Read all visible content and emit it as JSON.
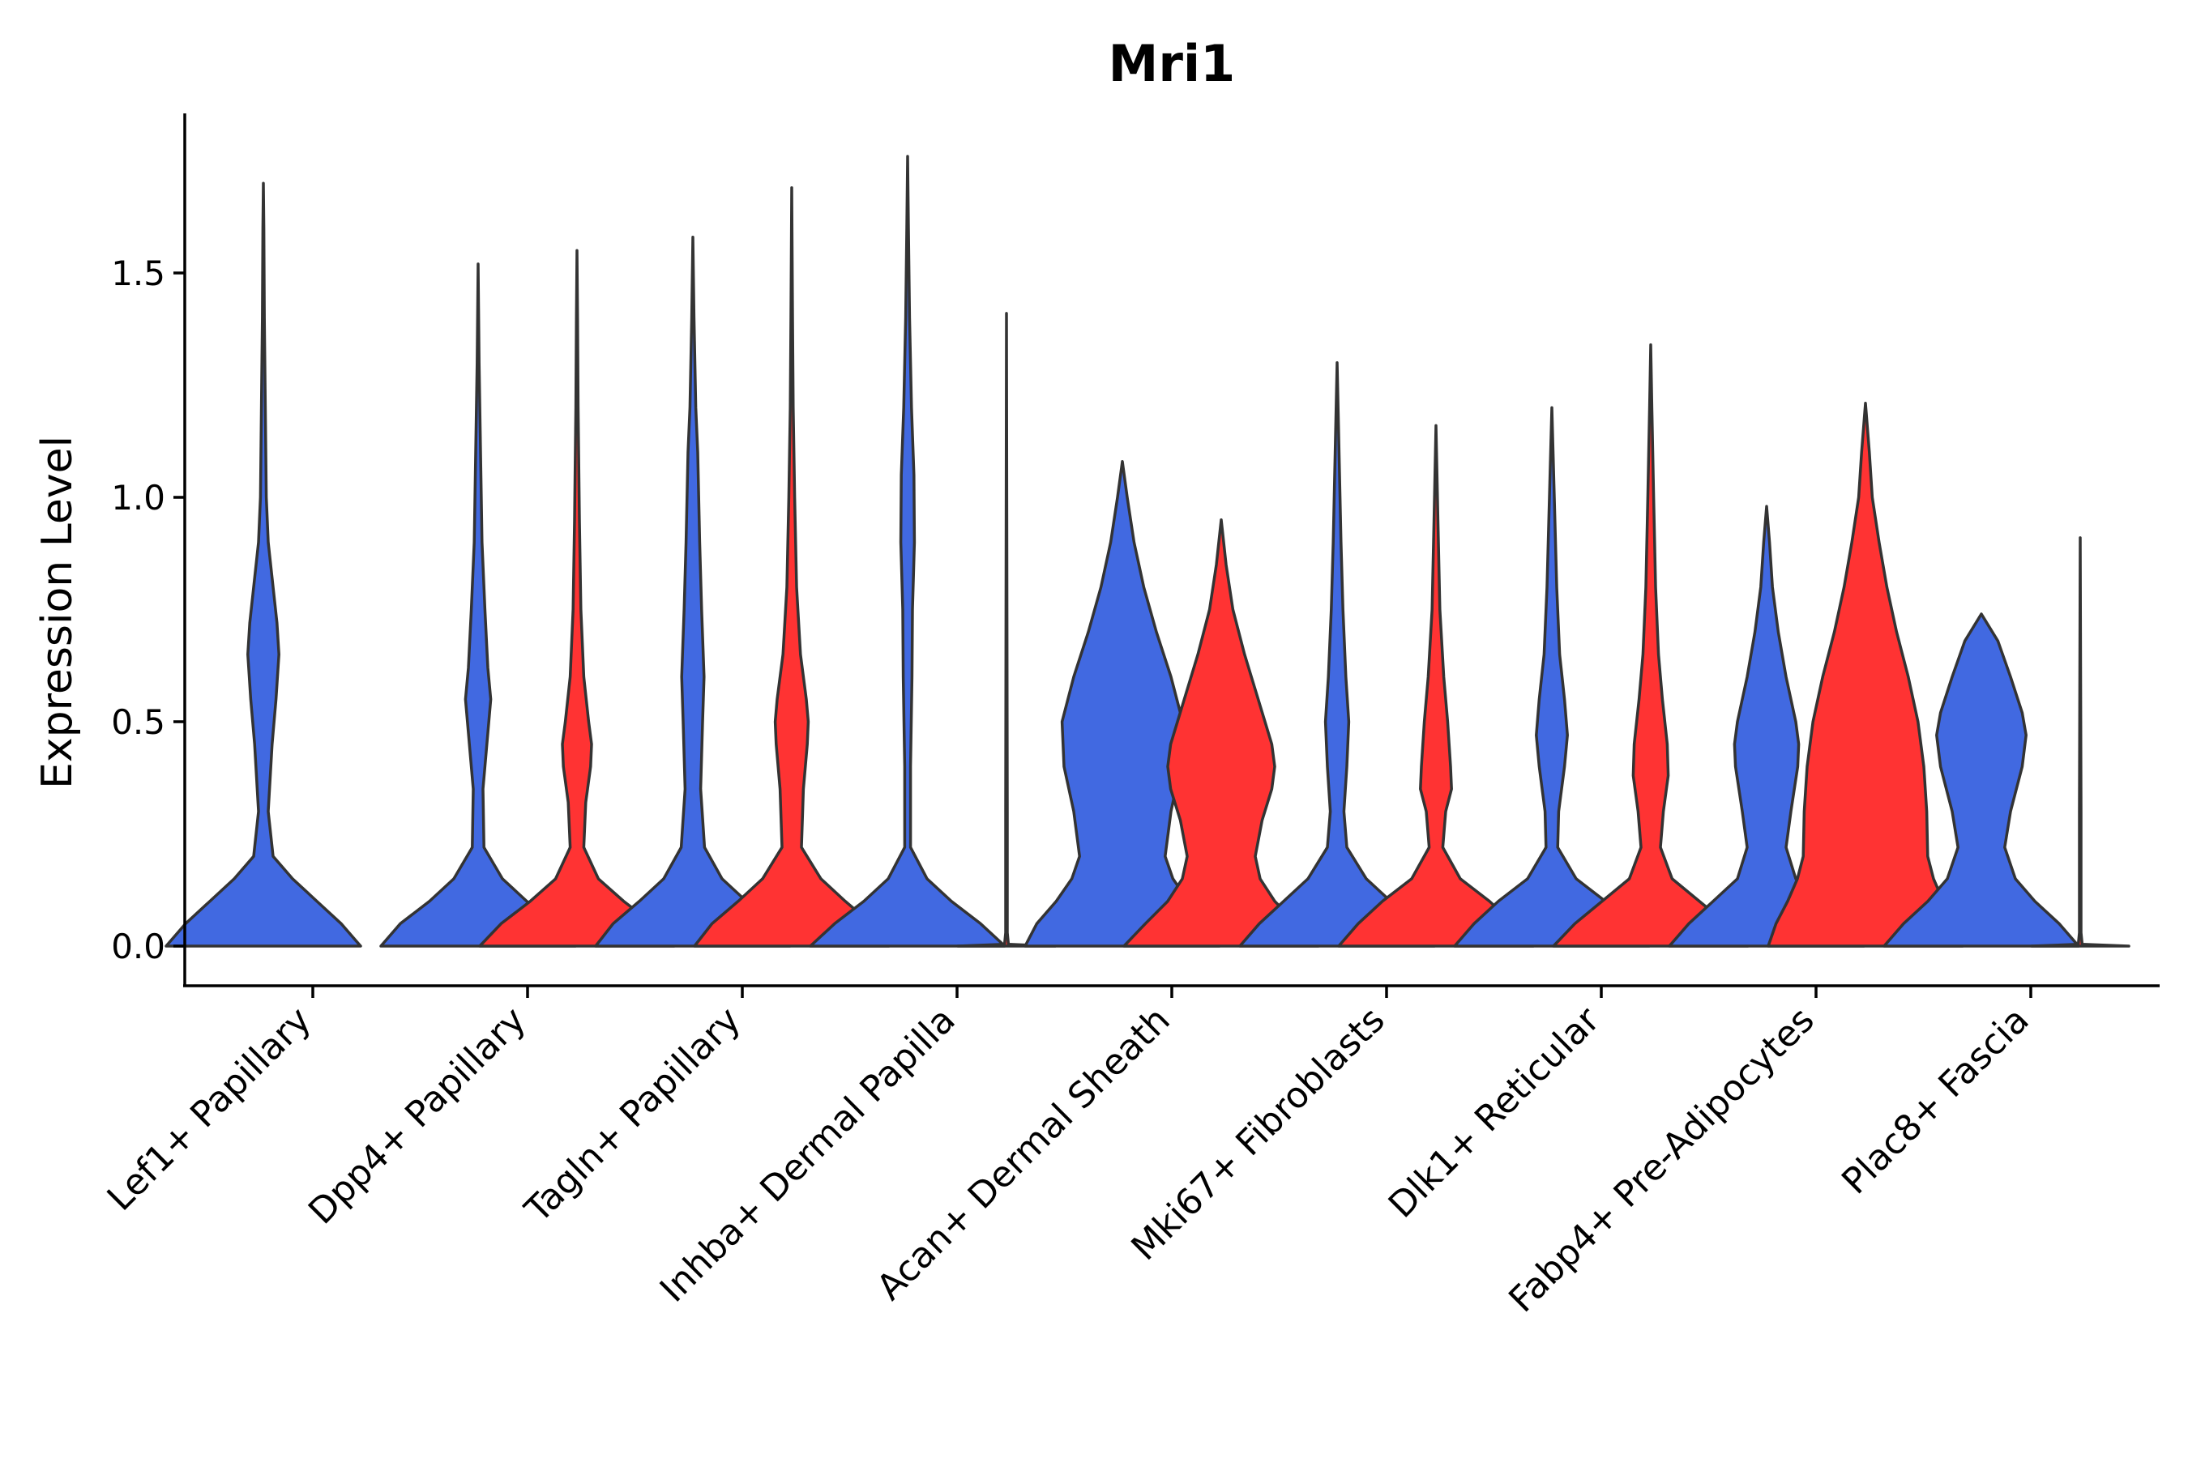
{
  "chart_data": {
    "type": "violin",
    "title": "Mri1",
    "xlabel": "",
    "ylabel": "Expression Level",
    "ylim": [
      -0.09,
      1.85
    ],
    "yticks": [
      0.0,
      0.5,
      1.0,
      1.5
    ],
    "ytick_labels": [
      "0.0",
      "0.5",
      "1.0",
      "1.5"
    ],
    "grid": false,
    "legend": "none",
    "series": [
      {
        "name": "group 1",
        "color": "#4169e1"
      },
      {
        "name": "group 2",
        "color": "#ff3333"
      }
    ],
    "categories": [
      "Lef1+ Papillary",
      "Dpp4+ Papillary",
      "Tagln+ Papillary",
      "Inhba+ Dermal Papilla",
      "Acan+ Dermal Sheath",
      "Mki67+ Fibroblasts",
      "Dlk1+ Reticular",
      "Fabp4+ Pre-Adipocytes",
      "Plac8+ Fascia"
    ],
    "violins": [
      {
        "category": "Lef1+ Papillary",
        "group": 1,
        "max": 1.7,
        "shape": [
          [
            0,
            1.0
          ],
          [
            0.05,
            0.8
          ],
          [
            0.1,
            0.55
          ],
          [
            0.15,
            0.3
          ],
          [
            0.2,
            0.1
          ],
          [
            0.3,
            0.05
          ],
          [
            0.45,
            0.09
          ],
          [
            0.55,
            0.13
          ],
          [
            0.65,
            0.16
          ],
          [
            0.72,
            0.14
          ],
          [
            0.8,
            0.1
          ],
          [
            0.9,
            0.05
          ],
          [
            1.0,
            0.03
          ],
          [
            1.2,
            0.02
          ],
          [
            1.4,
            0.01
          ],
          [
            1.6,
            0.005
          ],
          [
            1.7,
            0
          ]
        ]
      },
      {
        "category": "Dpp4+ Papillary",
        "group": 1,
        "max": 1.52,
        "shape": [
          [
            0,
            1.0
          ],
          [
            0.05,
            0.8
          ],
          [
            0.1,
            0.5
          ],
          [
            0.15,
            0.25
          ],
          [
            0.22,
            0.06
          ],
          [
            0.35,
            0.05
          ],
          [
            0.45,
            0.09
          ],
          [
            0.55,
            0.13
          ],
          [
            0.62,
            0.1
          ],
          [
            0.75,
            0.07
          ],
          [
            0.9,
            0.04
          ],
          [
            1.1,
            0.025
          ],
          [
            1.3,
            0.01
          ],
          [
            1.52,
            0
          ]
        ]
      },
      {
        "category": "Dpp4+ Papillary",
        "group": 2,
        "max": 1.55,
        "shape": [
          [
            0,
            1.0
          ],
          [
            0.05,
            0.78
          ],
          [
            0.1,
            0.48
          ],
          [
            0.15,
            0.22
          ],
          [
            0.22,
            0.07
          ],
          [
            0.32,
            0.09
          ],
          [
            0.4,
            0.14
          ],
          [
            0.45,
            0.15
          ],
          [
            0.5,
            0.12
          ],
          [
            0.6,
            0.07
          ],
          [
            0.75,
            0.04
          ],
          [
            0.95,
            0.025
          ],
          [
            1.2,
            0.012
          ],
          [
            1.4,
            0.006
          ],
          [
            1.55,
            0
          ]
        ]
      },
      {
        "category": "Tagln+ Papillary",
        "group": 1,
        "max": 1.58,
        "shape": [
          [
            0,
            1.0
          ],
          [
            0.05,
            0.82
          ],
          [
            0.1,
            0.55
          ],
          [
            0.15,
            0.3
          ],
          [
            0.22,
            0.12
          ],
          [
            0.35,
            0.08
          ],
          [
            0.5,
            0.1
          ],
          [
            0.6,
            0.115
          ],
          [
            0.75,
            0.09
          ],
          [
            0.9,
            0.07
          ],
          [
            1.1,
            0.05
          ],
          [
            1.2,
            0.03
          ],
          [
            1.4,
            0.012
          ],
          [
            1.58,
            0
          ]
        ]
      },
      {
        "category": "Tagln+ Papillary",
        "group": 2,
        "max": 1.69,
        "shape": [
          [
            0,
            1.0
          ],
          [
            0.05,
            0.82
          ],
          [
            0.1,
            0.55
          ],
          [
            0.15,
            0.3
          ],
          [
            0.22,
            0.1
          ],
          [
            0.35,
            0.12
          ],
          [
            0.45,
            0.16
          ],
          [
            0.5,
            0.17
          ],
          [
            0.55,
            0.15
          ],
          [
            0.65,
            0.09
          ],
          [
            0.8,
            0.05
          ],
          [
            1.0,
            0.03
          ],
          [
            1.2,
            0.015
          ],
          [
            1.4,
            0.008
          ],
          [
            1.69,
            0
          ]
        ]
      },
      {
        "category": "Inhba+ Dermal Papilla",
        "group": 1,
        "max": 1.76,
        "shape": [
          [
            0,
            1.0
          ],
          [
            0.05,
            0.75
          ],
          [
            0.1,
            0.45
          ],
          [
            0.15,
            0.2
          ],
          [
            0.22,
            0.03
          ],
          [
            0.4,
            0.03
          ],
          [
            0.6,
            0.045
          ],
          [
            0.75,
            0.05
          ],
          [
            0.9,
            0.07
          ],
          [
            1.05,
            0.065
          ],
          [
            1.2,
            0.04
          ],
          [
            1.4,
            0.02
          ],
          [
            1.6,
            0.008
          ],
          [
            1.76,
            0
          ]
        ]
      },
      {
        "category": "Inhba+ Dermal Papilla",
        "group": 2,
        "max": 1.41,
        "shape": [
          [
            0,
            0.5
          ],
          [
            0.004,
            0.02
          ],
          [
            0.03,
            0.008
          ],
          [
            0.3,
            0.008
          ],
          [
            1.41,
            0
          ]
        ]
      },
      {
        "category": "Acan+ Dermal Sheath",
        "group": 1,
        "max": 1.08,
        "shape": [
          [
            0,
            1.0
          ],
          [
            0.05,
            0.88
          ],
          [
            0.1,
            0.68
          ],
          [
            0.15,
            0.52
          ],
          [
            0.2,
            0.44
          ],
          [
            0.3,
            0.5
          ],
          [
            0.4,
            0.6
          ],
          [
            0.5,
            0.62
          ],
          [
            0.6,
            0.5
          ],
          [
            0.7,
            0.35
          ],
          [
            0.8,
            0.22
          ],
          [
            0.9,
            0.12
          ],
          [
            1.0,
            0.05
          ],
          [
            1.08,
            0
          ]
        ]
      },
      {
        "category": "Acan+ Dermal Sheath",
        "group": 2,
        "max": 0.95,
        "shape": [
          [
            0,
            1.0
          ],
          [
            0.05,
            0.78
          ],
          [
            0.1,
            0.55
          ],
          [
            0.15,
            0.4
          ],
          [
            0.2,
            0.35
          ],
          [
            0.28,
            0.42
          ],
          [
            0.35,
            0.52
          ],
          [
            0.4,
            0.55
          ],
          [
            0.45,
            0.52
          ],
          [
            0.55,
            0.38
          ],
          [
            0.65,
            0.24
          ],
          [
            0.75,
            0.12
          ],
          [
            0.85,
            0.05
          ],
          [
            0.95,
            0
          ]
        ]
      },
      {
        "category": "Mki67+ Fibroblasts",
        "group": 1,
        "max": 1.3,
        "shape": [
          [
            0,
            1.0
          ],
          [
            0.05,
            0.8
          ],
          [
            0.1,
            0.55
          ],
          [
            0.15,
            0.3
          ],
          [
            0.22,
            0.1
          ],
          [
            0.3,
            0.07
          ],
          [
            0.4,
            0.1
          ],
          [
            0.5,
            0.12
          ],
          [
            0.6,
            0.09
          ],
          [
            0.75,
            0.06
          ],
          [
            0.9,
            0.04
          ],
          [
            1.1,
            0.02
          ],
          [
            1.3,
            0
          ]
        ]
      },
      {
        "category": "Mki67+ Fibroblasts",
        "group": 2,
        "max": 1.16,
        "shape": [
          [
            0,
            1.0
          ],
          [
            0.05,
            0.8
          ],
          [
            0.1,
            0.55
          ],
          [
            0.15,
            0.25
          ],
          [
            0.22,
            0.07
          ],
          [
            0.3,
            0.1
          ],
          [
            0.35,
            0.16
          ],
          [
            0.4,
            0.15
          ],
          [
            0.5,
            0.12
          ],
          [
            0.6,
            0.08
          ],
          [
            0.75,
            0.04
          ],
          [
            0.95,
            0.02
          ],
          [
            1.16,
            0
          ]
        ]
      },
      {
        "category": "Dlk1+ Reticular",
        "group": 1,
        "max": 1.2,
        "shape": [
          [
            0,
            1.0
          ],
          [
            0.05,
            0.8
          ],
          [
            0.1,
            0.55
          ],
          [
            0.15,
            0.25
          ],
          [
            0.22,
            0.06
          ],
          [
            0.3,
            0.07
          ],
          [
            0.4,
            0.13
          ],
          [
            0.47,
            0.16
          ],
          [
            0.55,
            0.13
          ],
          [
            0.65,
            0.08
          ],
          [
            0.8,
            0.05
          ],
          [
            1.0,
            0.025
          ],
          [
            1.2,
            0
          ]
        ]
      },
      {
        "category": "Dlk1+ Reticular",
        "group": 2,
        "max": 1.34,
        "shape": [
          [
            0,
            1.0
          ],
          [
            0.05,
            0.78
          ],
          [
            0.1,
            0.5
          ],
          [
            0.15,
            0.22
          ],
          [
            0.22,
            0.1
          ],
          [
            0.3,
            0.13
          ],
          [
            0.38,
            0.18
          ],
          [
            0.45,
            0.17
          ],
          [
            0.55,
            0.12
          ],
          [
            0.65,
            0.08
          ],
          [
            0.8,
            0.05
          ],
          [
            1.0,
            0.03
          ],
          [
            1.2,
            0.012
          ],
          [
            1.34,
            0
          ]
        ]
      },
      {
        "category": "Fabp4+ Pre-Adipocytes",
        "group": 1,
        "max": 0.98,
        "shape": [
          [
            0,
            1.0
          ],
          [
            0.05,
            0.8
          ],
          [
            0.1,
            0.55
          ],
          [
            0.15,
            0.3
          ],
          [
            0.22,
            0.2
          ],
          [
            0.3,
            0.25
          ],
          [
            0.4,
            0.32
          ],
          [
            0.45,
            0.33
          ],
          [
            0.5,
            0.3
          ],
          [
            0.6,
            0.2
          ],
          [
            0.7,
            0.12
          ],
          [
            0.8,
            0.06
          ],
          [
            0.9,
            0.03
          ],
          [
            0.98,
            0
          ]
        ]
      },
      {
        "category": "Fabp4+ Pre-Adipocytes",
        "group": 2,
        "max": 1.21,
        "shape": [
          [
            0,
            1.0
          ],
          [
            0.05,
            0.92
          ],
          [
            0.1,
            0.8
          ],
          [
            0.15,
            0.7
          ],
          [
            0.2,
            0.64
          ],
          [
            0.3,
            0.63
          ],
          [
            0.4,
            0.6
          ],
          [
            0.5,
            0.54
          ],
          [
            0.6,
            0.44
          ],
          [
            0.7,
            0.32
          ],
          [
            0.8,
            0.22
          ],
          [
            0.9,
            0.14
          ],
          [
            1.0,
            0.07
          ],
          [
            1.1,
            0.04
          ],
          [
            1.21,
            0
          ]
        ]
      },
      {
        "category": "Plac8+ Fascia",
        "group": 1,
        "max": 0.74,
        "shape": [
          [
            0,
            1.0
          ],
          [
            0.05,
            0.8
          ],
          [
            0.1,
            0.55
          ],
          [
            0.15,
            0.35
          ],
          [
            0.22,
            0.24
          ],
          [
            0.3,
            0.3
          ],
          [
            0.4,
            0.42
          ],
          [
            0.47,
            0.46
          ],
          [
            0.52,
            0.42
          ],
          [
            0.6,
            0.3
          ],
          [
            0.68,
            0.17
          ],
          [
            0.74,
            0
          ]
        ]
      },
      {
        "category": "Plac8+ Fascia",
        "group": 2,
        "max": 0.91,
        "shape": [
          [
            0,
            0.5
          ],
          [
            0.004,
            0.02
          ],
          [
            0.03,
            0.008
          ],
          [
            0.3,
            0.008
          ],
          [
            0.91,
            0
          ]
        ]
      }
    ]
  }
}
